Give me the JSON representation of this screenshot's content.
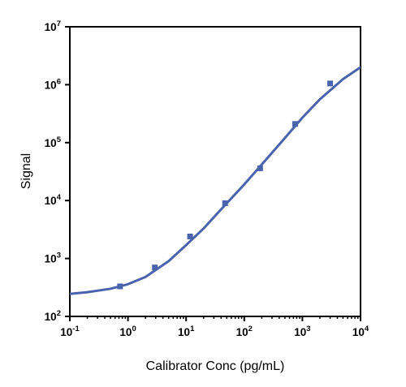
{
  "chart_data": {
    "type": "scatter",
    "title": "",
    "xlabel": "Calibrator Conc (pg/mL)",
    "ylabel": "Signal",
    "xscale": "log",
    "yscale": "log",
    "xlim": [
      0.1,
      10000
    ],
    "ylim": [
      100,
      10000000
    ],
    "x_ticks": [
      {
        "base": "10",
        "exp": "-1"
      },
      {
        "base": "10",
        "exp": "0"
      },
      {
        "base": "10",
        "exp": "1"
      },
      {
        "base": "10",
        "exp": "2"
      },
      {
        "base": "10",
        "exp": "3"
      },
      {
        "base": "10",
        "exp": "4"
      }
    ],
    "y_ticks": [
      {
        "base": "10",
        "exp": "2"
      },
      {
        "base": "10",
        "exp": "3"
      },
      {
        "base": "10",
        "exp": "4"
      },
      {
        "base": "10",
        "exp": "5"
      },
      {
        "base": "10",
        "exp": "6"
      },
      {
        "base": "10",
        "exp": "7"
      }
    ],
    "grid": false,
    "legend": "none",
    "series": [
      {
        "kind": "points",
        "color": "#4a63ad",
        "x": [
          0.73,
          2.9,
          11.7,
          46.9,
          187.5,
          750,
          3000
        ],
        "y": [
          330,
          700,
          2400,
          9000,
          36000,
          210000,
          1050000
        ]
      },
      {
        "kind": "fit-curve",
        "color": "#4a63ad",
        "x": [
          0.1,
          0.2,
          0.5,
          1,
          2,
          5,
          10,
          20,
          50,
          100,
          200,
          500,
          1000,
          2000,
          5000,
          10000
        ],
        "y": [
          245,
          262,
          300,
          360,
          480,
          900,
          1700,
          3300,
          9000,
          19000,
          42000,
          120000,
          270000,
          560000,
          1250000,
          2000000
        ]
      }
    ]
  }
}
